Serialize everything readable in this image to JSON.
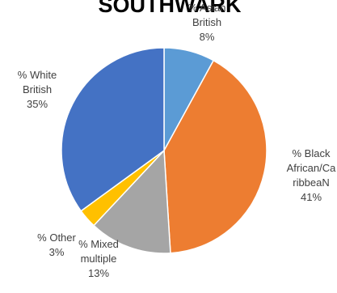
{
  "chart_data": {
    "type": "pie",
    "title": "SOUTHWARK",
    "start_angle_deg": 0,
    "direction": "clockwise",
    "slices": [
      {
        "name": "% Asian British",
        "label_lines": [
          "% Asian",
          "British"
        ],
        "value_label": "8%",
        "value": 8,
        "color": "#5b9bd5"
      },
      {
        "name": "% Black African/CaribbeaN",
        "label_lines": [
          "% Black",
          "African/Ca",
          "ribbeaN"
        ],
        "value_label": "41%",
        "value": 41,
        "color": "#ed7d31"
      },
      {
        "name": "% Mixed multiple",
        "label_lines": [
          "% Mixed",
          "multiple"
        ],
        "value_label": "13%",
        "value": 13,
        "color": "#a5a5a5"
      },
      {
        "name": "% Other",
        "label_lines": [
          "% Other"
        ],
        "value_label": "3%",
        "value": 3,
        "color": "#ffc000"
      },
      {
        "name": "% White British",
        "label_lines": [
          "% White",
          "British"
        ],
        "value_label": "35%",
        "value": 35,
        "color": "#4472c4"
      }
    ]
  }
}
